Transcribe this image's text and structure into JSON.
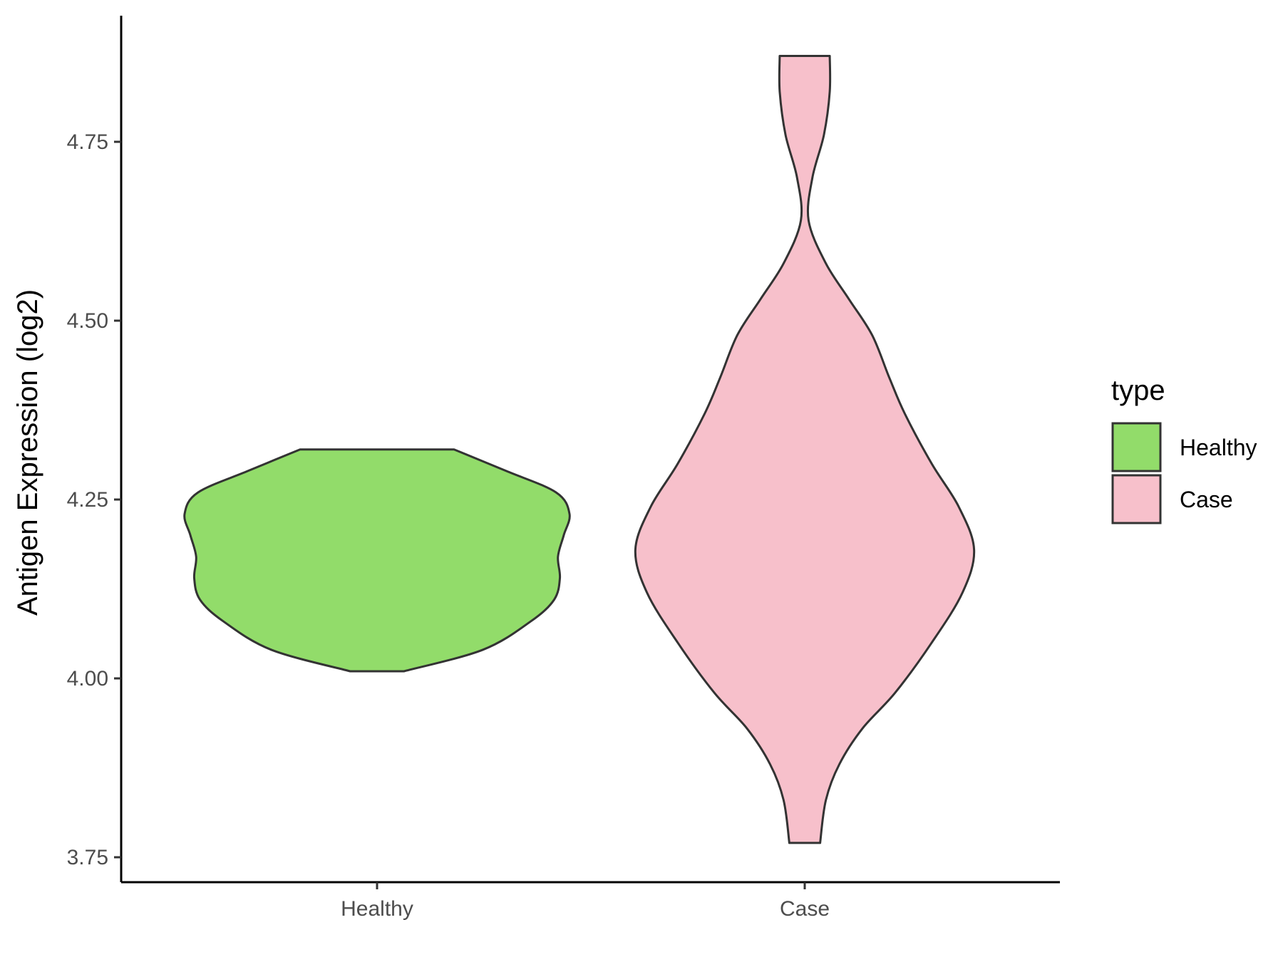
{
  "chart_data": {
    "type": "violin",
    "title": "",
    "xlabel": "",
    "ylabel": "Antigen Expression (log2)",
    "ylim": [
      3.7,
      4.92
    ],
    "y_ticks": [
      "3.75",
      "4.00",
      "4.25",
      "4.50",
      "4.75"
    ],
    "grid": false,
    "categories": [
      "Healthy",
      "Case"
    ],
    "legend": {
      "title": "type",
      "position": "right",
      "entries": [
        {
          "label": "Healthy",
          "color": "#92dc6a"
        },
        {
          "label": "Case",
          "color": "#f7c0cb"
        }
      ]
    },
    "series": [
      {
        "name": "Healthy",
        "color": "#92dc6a",
        "min": 4.01,
        "max": 4.32,
        "density_profile": [
          [
            4.01,
            0.14
          ],
          [
            4.04,
            0.55
          ],
          [
            4.08,
            0.8
          ],
          [
            4.11,
            0.92
          ],
          [
            4.14,
            0.95
          ],
          [
            4.17,
            0.94
          ],
          [
            4.2,
            0.97
          ],
          [
            4.23,
            1.0
          ],
          [
            4.26,
            0.93
          ],
          [
            4.29,
            0.67
          ],
          [
            4.32,
            0.4
          ]
        ]
      },
      {
        "name": "Case",
        "color": "#f7c0cb",
        "min": 3.77,
        "max": 4.87,
        "density_profile": [
          [
            3.77,
            0.08
          ],
          [
            3.83,
            0.11
          ],
          [
            3.88,
            0.18
          ],
          [
            3.93,
            0.3
          ],
          [
            3.98,
            0.47
          ],
          [
            4.05,
            0.66
          ],
          [
            4.12,
            0.82
          ],
          [
            4.18,
            0.88
          ],
          [
            4.24,
            0.8
          ],
          [
            4.3,
            0.66
          ],
          [
            4.37,
            0.52
          ],
          [
            4.42,
            0.44
          ],
          [
            4.48,
            0.35
          ],
          [
            4.53,
            0.23
          ],
          [
            4.58,
            0.11
          ],
          [
            4.64,
            0.02
          ],
          [
            4.7,
            0.04
          ],
          [
            4.76,
            0.1
          ],
          [
            4.82,
            0.13
          ],
          [
            4.87,
            0.13
          ]
        ]
      }
    ]
  }
}
